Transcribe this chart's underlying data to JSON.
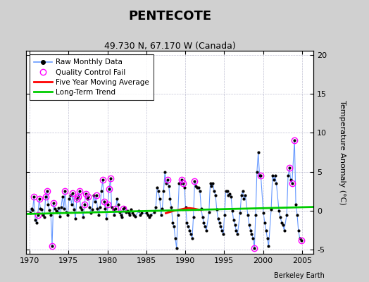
{
  "title": "PENTECOTE",
  "subtitle": "49.730 N, 67.170 W (Canada)",
  "ylabel": "Temperature Anomaly (°C)",
  "credit": "Berkeley Earth",
  "xlim": [
    1969.5,
    2006.5
  ],
  "ylim": [
    -5.5,
    20.5
  ],
  "yticks": [
    -5,
    0,
    5,
    10,
    15,
    20
  ],
  "xticks": [
    1970,
    1975,
    1980,
    1985,
    1990,
    1995,
    2000,
    2005
  ],
  "fig_bg": "#d0d0d0",
  "plot_bg": "#ffffff",
  "raw_line_color": "#6699ff",
  "raw_dot_color": "#000000",
  "qc_color": "#ff00ff",
  "ma_color": "#ff0000",
  "trend_color": "#00cc00",
  "grid_color": "#b0b0c8",
  "raw_data": [
    [
      1970.04,
      -0.3
    ],
    [
      1970.21,
      0.3
    ],
    [
      1970.38,
      0.1
    ],
    [
      1970.54,
      1.8
    ],
    [
      1970.71,
      -1.2
    ],
    [
      1970.88,
      -1.5
    ],
    [
      1971.04,
      -0.5
    ],
    [
      1971.21,
      1.5
    ],
    [
      1971.38,
      0.3
    ],
    [
      1971.54,
      0.2
    ],
    [
      1971.71,
      -0.5
    ],
    [
      1971.88,
      -0.8
    ],
    [
      1972.04,
      1.8
    ],
    [
      1972.21,
      2.5
    ],
    [
      1972.38,
      0.8
    ],
    [
      1972.54,
      0.1
    ],
    [
      1972.71,
      -0.5
    ],
    [
      1972.88,
      -4.5
    ],
    [
      1973.04,
      1.0
    ],
    [
      1973.21,
      0.3
    ],
    [
      1973.38,
      0.0
    ],
    [
      1973.54,
      -0.2
    ],
    [
      1973.71,
      0.4
    ],
    [
      1973.88,
      -0.7
    ],
    [
      1974.04,
      0.5
    ],
    [
      1974.21,
      1.8
    ],
    [
      1974.38,
      0.3
    ],
    [
      1974.54,
      2.5
    ],
    [
      1974.71,
      -0.2
    ],
    [
      1974.88,
      -0.5
    ],
    [
      1975.04,
      1.5
    ],
    [
      1975.21,
      2.0
    ],
    [
      1975.38,
      0.8
    ],
    [
      1975.54,
      2.3
    ],
    [
      1975.71,
      0.2
    ],
    [
      1975.88,
      -1.0
    ],
    [
      1976.04,
      1.5
    ],
    [
      1976.21,
      1.8
    ],
    [
      1976.38,
      2.5
    ],
    [
      1976.54,
      0.5
    ],
    [
      1976.71,
      0.2
    ],
    [
      1976.88,
      -0.8
    ],
    [
      1977.04,
      0.8
    ],
    [
      1977.21,
      2.2
    ],
    [
      1977.38,
      1.5
    ],
    [
      1977.54,
      1.8
    ],
    [
      1977.71,
      0.5
    ],
    [
      1977.88,
      -0.3
    ],
    [
      1978.04,
      0.2
    ],
    [
      1978.21,
      2.0
    ],
    [
      1978.38,
      1.2
    ],
    [
      1978.54,
      2.0
    ],
    [
      1978.71,
      0.3
    ],
    [
      1978.88,
      -0.5
    ],
    [
      1979.04,
      0.5
    ],
    [
      1979.21,
      2.5
    ],
    [
      1979.38,
      4.0
    ],
    [
      1979.54,
      1.2
    ],
    [
      1979.71,
      0.3
    ],
    [
      1979.88,
      -1.0
    ],
    [
      1980.04,
      0.8
    ],
    [
      1980.21,
      2.8
    ],
    [
      1980.38,
      4.2
    ],
    [
      1980.54,
      0.5
    ],
    [
      1980.71,
      0.2
    ],
    [
      1980.88,
      -0.5
    ],
    [
      1981.04,
      0.3
    ],
    [
      1981.21,
      1.5
    ],
    [
      1981.38,
      0.8
    ],
    [
      1981.54,
      -0.2
    ],
    [
      1981.71,
      -0.5
    ],
    [
      1981.88,
      -0.8
    ],
    [
      1982.04,
      0.3
    ],
    [
      1982.21,
      0.5
    ],
    [
      1982.38,
      -0.2
    ],
    [
      1982.54,
      0.0
    ],
    [
      1982.71,
      -0.3
    ],
    [
      1982.88,
      -0.5
    ],
    [
      1983.04,
      0.2
    ],
    [
      1983.21,
      -0.3
    ],
    [
      1983.38,
      -0.5
    ],
    [
      1983.54,
      -0.7
    ],
    [
      1984.04,
      0.0
    ],
    [
      1984.21,
      -0.5
    ],
    [
      1984.38,
      -0.3
    ],
    [
      1985.04,
      -0.3
    ],
    [
      1985.21,
      -0.5
    ],
    [
      1985.38,
      -0.8
    ],
    [
      1985.54,
      -0.5
    ],
    [
      1986.04,
      -0.2
    ],
    [
      1986.21,
      0.5
    ],
    [
      1986.38,
      3.0
    ],
    [
      1986.54,
      2.5
    ],
    [
      1986.71,
      1.5
    ],
    [
      1986.88,
      -0.5
    ],
    [
      1987.04,
      0.3
    ],
    [
      1987.21,
      2.5
    ],
    [
      1987.38,
      5.0
    ],
    [
      1987.54,
      3.5
    ],
    [
      1987.71,
      4.0
    ],
    [
      1987.88,
      3.2
    ],
    [
      1988.04,
      1.5
    ],
    [
      1988.21,
      0.5
    ],
    [
      1988.38,
      -1.5
    ],
    [
      1988.54,
      -2.0
    ],
    [
      1988.71,
      -3.5
    ],
    [
      1988.88,
      -4.8
    ],
    [
      1989.04,
      -0.5
    ],
    [
      1989.21,
      3.5
    ],
    [
      1989.38,
      3.5
    ],
    [
      1989.54,
      4.0
    ],
    [
      1989.71,
      3.5
    ],
    [
      1989.88,
      3.0
    ],
    [
      1990.04,
      0.5
    ],
    [
      1990.21,
      -1.5
    ],
    [
      1990.38,
      -2.0
    ],
    [
      1990.54,
      -2.5
    ],
    [
      1990.71,
      -3.0
    ],
    [
      1990.88,
      -3.5
    ],
    [
      1991.04,
      -0.8
    ],
    [
      1991.21,
      3.8
    ],
    [
      1991.38,
      3.2
    ],
    [
      1991.54,
      3.0
    ],
    [
      1991.71,
      3.0
    ],
    [
      1991.88,
      2.5
    ],
    [
      1992.04,
      0.3
    ],
    [
      1992.21,
      -0.8
    ],
    [
      1992.38,
      -1.5
    ],
    [
      1992.54,
      -2.0
    ],
    [
      1992.71,
      -2.5
    ],
    [
      1993.04,
      -0.2
    ],
    [
      1993.21,
      3.5
    ],
    [
      1993.38,
      3.2
    ],
    [
      1993.54,
      3.5
    ],
    [
      1993.71,
      2.5
    ],
    [
      1993.88,
      2.0
    ],
    [
      1994.04,
      0.2
    ],
    [
      1994.21,
      -1.0
    ],
    [
      1994.38,
      -1.5
    ],
    [
      1994.54,
      -2.0
    ],
    [
      1994.71,
      -2.5
    ],
    [
      1994.88,
      -3.0
    ],
    [
      1995.04,
      -0.5
    ],
    [
      1995.21,
      2.5
    ],
    [
      1995.38,
      2.5
    ],
    [
      1995.54,
      2.0
    ],
    [
      1995.71,
      2.2
    ],
    [
      1995.88,
      1.8
    ],
    [
      1996.04,
      0.0
    ],
    [
      1996.21,
      -1.2
    ],
    [
      1996.38,
      -1.8
    ],
    [
      1996.54,
      -2.5
    ],
    [
      1996.71,
      -3.0
    ],
    [
      1997.04,
      -0.3
    ],
    [
      1997.21,
      2.0
    ],
    [
      1997.38,
      2.5
    ],
    [
      1997.54,
      1.5
    ],
    [
      1997.71,
      2.0
    ],
    [
      1998.04,
      -0.5
    ],
    [
      1998.21,
      -1.8
    ],
    [
      1998.38,
      -2.5
    ],
    [
      1998.54,
      -3.0
    ],
    [
      1998.71,
      -3.5
    ],
    [
      1998.88,
      -4.8
    ],
    [
      1999.04,
      -0.5
    ],
    [
      1999.21,
      5.0
    ],
    [
      1999.38,
      7.5
    ],
    [
      1999.54,
      4.5
    ],
    [
      1999.71,
      4.5
    ],
    [
      2000.04,
      -0.3
    ],
    [
      2000.21,
      -1.5
    ],
    [
      2000.38,
      -2.5
    ],
    [
      2000.54,
      -3.5
    ],
    [
      2000.71,
      -4.5
    ],
    [
      2001.04,
      0.2
    ],
    [
      2001.21,
      4.5
    ],
    [
      2001.38,
      4.0
    ],
    [
      2001.54,
      4.5
    ],
    [
      2001.71,
      3.5
    ],
    [
      2002.04,
      0.0
    ],
    [
      2002.21,
      -0.8
    ],
    [
      2002.38,
      -1.5
    ],
    [
      2002.54,
      -1.8
    ],
    [
      2002.71,
      -2.5
    ],
    [
      2003.04,
      -0.5
    ],
    [
      2003.21,
      4.5
    ],
    [
      2003.38,
      5.5
    ],
    [
      2003.54,
      4.0
    ],
    [
      2003.71,
      3.5
    ],
    [
      2004.04,
      9.0
    ],
    [
      2004.21,
      0.8
    ],
    [
      2004.38,
      -0.5
    ],
    [
      2004.54,
      -2.5
    ],
    [
      2004.71,
      -3.5
    ],
    [
      2004.88,
      -3.8
    ]
  ],
  "qc_fail_data": [
    [
      1970.54,
      1.8
    ],
    [
      1971.04,
      -0.5
    ],
    [
      1971.21,
      1.5
    ],
    [
      1972.04,
      1.8
    ],
    [
      1972.21,
      2.5
    ],
    [
      1972.88,
      -4.5
    ],
    [
      1973.04,
      1.0
    ],
    [
      1974.54,
      2.5
    ],
    [
      1975.54,
      2.3
    ],
    [
      1976.04,
      1.5
    ],
    [
      1976.21,
      1.8
    ],
    [
      1976.38,
      2.5
    ],
    [
      1977.04,
      0.8
    ],
    [
      1977.21,
      2.2
    ],
    [
      1977.54,
      1.8
    ],
    [
      1978.54,
      2.0
    ],
    [
      1979.38,
      4.0
    ],
    [
      1979.54,
      1.2
    ],
    [
      1980.04,
      0.8
    ],
    [
      1980.21,
      2.8
    ],
    [
      1980.38,
      4.2
    ],
    [
      1981.04,
      0.3
    ],
    [
      1982.04,
      0.3
    ],
    [
      1987.71,
      4.0
    ],
    [
      1989.54,
      4.0
    ],
    [
      1989.71,
      3.5
    ],
    [
      1991.21,
      3.8
    ],
    [
      1998.88,
      -4.8
    ],
    [
      1999.71,
      4.5
    ],
    [
      2003.38,
      5.5
    ],
    [
      2003.71,
      3.5
    ],
    [
      2004.04,
      9.0
    ],
    [
      2004.88,
      -3.8
    ]
  ],
  "ma_data": [
    [
      1987.5,
      -0.3
    ],
    [
      1988.0,
      -0.15
    ],
    [
      1988.5,
      0.0
    ],
    [
      1989.0,
      0.1
    ],
    [
      1989.5,
      0.2
    ],
    [
      1990.0,
      0.3
    ],
    [
      1990.5,
      0.35
    ],
    [
      1991.0,
      0.3
    ],
    [
      1991.5,
      0.2
    ],
    [
      1992.0,
      0.1
    ]
  ],
  "trend_x": [
    1969.5,
    2006.5
  ],
  "trend_y": [
    -0.4,
    0.5
  ]
}
